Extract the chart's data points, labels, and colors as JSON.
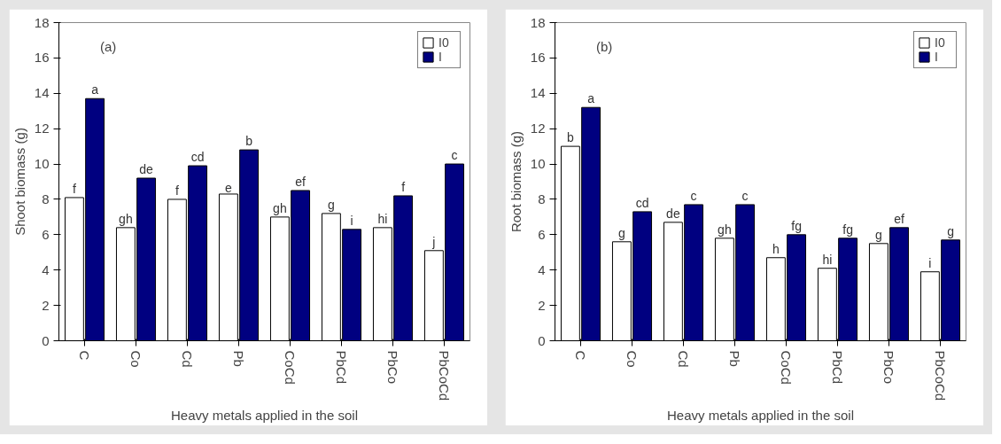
{
  "chart_data": [
    {
      "type": "bar",
      "ylabel": "Shoot biomass (g)",
      "xlabel": "Heavy metals applied in the soil",
      "annotations": [
        "(a)"
      ],
      "categories": [
        "C",
        "Co",
        "Cd",
        "Pb",
        "CoCd",
        "PbCd",
        "PbCo",
        "PbCoCd"
      ],
      "ylim": [
        0,
        18
      ],
      "yticks": [
        0,
        2,
        4,
        6,
        8,
        10,
        12,
        14,
        16,
        18
      ],
      "legend": "top right",
      "series": [
        {
          "name": "I0",
          "color": "#ffffff",
          "values": [
            8.1,
            6.4,
            8.0,
            8.3,
            7.0,
            7.2,
            6.4,
            5.1
          ],
          "value_labels": [
            "f",
            "gh",
            "f",
            "e",
            "gh",
            "g",
            "hi",
            "j"
          ]
        },
        {
          "name": "I",
          "color": "#000080",
          "values": [
            13.7,
            9.2,
            9.9,
            10.8,
            8.5,
            6.3,
            8.2,
            10.0
          ],
          "value_labels": [
            "a",
            "de",
            "cd",
            "b",
            "ef",
            "i",
            "f",
            "c"
          ]
        }
      ]
    },
    {
      "type": "bar",
      "ylabel": "Root biomass (g)",
      "xlabel": "Heavy metals applied in the soil",
      "annotations": [
        "(b)"
      ],
      "categories": [
        "C",
        "Co",
        "Cd",
        "Pb",
        "CoCd",
        "PbCd",
        "PbCo",
        "PbCoCd"
      ],
      "ylim": [
        0,
        18
      ],
      "yticks": [
        0,
        2,
        4,
        6,
        8,
        10,
        12,
        14,
        16,
        18
      ],
      "legend": "top right",
      "series": [
        {
          "name": "I0",
          "color": "#ffffff",
          "values": [
            11.0,
            5.6,
            6.7,
            5.8,
            4.7,
            4.1,
            5.5,
            3.9
          ],
          "value_labels": [
            "b",
            "g",
            "de",
            "gh",
            "h",
            "hi",
            "g",
            "i"
          ]
        },
        {
          "name": "I",
          "color": "#000080",
          "values": [
            13.2,
            7.3,
            7.7,
            7.7,
            6.0,
            5.8,
            6.4,
            5.7
          ],
          "value_labels": [
            "a",
            "cd",
            "c",
            "c",
            "fg",
            "fg",
            "ef",
            "g"
          ]
        }
      ]
    }
  ]
}
